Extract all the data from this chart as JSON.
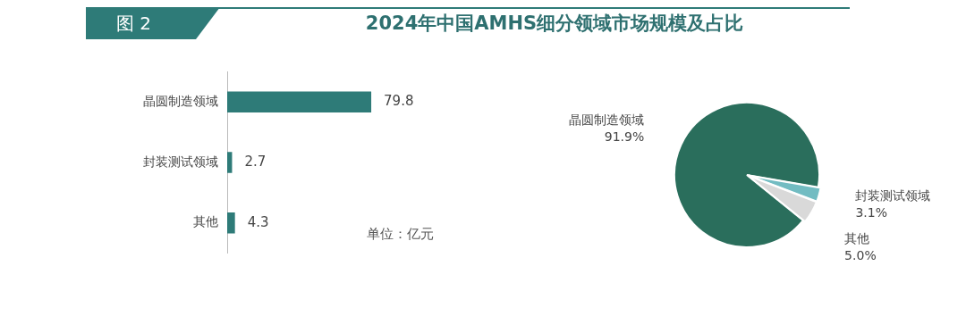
{
  "chart_data": [
    {
      "type": "bar",
      "title": "2024年中国AMHS细分领域市场规模及占比",
      "orientation": "horizontal",
      "categories": [
        "晶圆制造领域",
        "封装测试领域",
        "其他"
      ],
      "values": [
        79.8,
        2.7,
        4.3
      ],
      "color": "#2e7b78",
      "data_labels": true,
      "legend": false,
      "annotations": [
        "图 2",
        "单位：亿元"
      ]
    },
    {
      "type": "pie",
      "categories": [
        "晶圆制造领域",
        "封装测试领域",
        "其他"
      ],
      "values": [
        91.9,
        3.1,
        5.0
      ],
      "colors": [
        "#2a6e5c",
        "#72bcc2",
        "#d9d9d9"
      ],
      "value_labels": [
        "91.9%",
        "3.1%",
        "5.0%"
      ],
      "legend": false
    }
  ]
}
